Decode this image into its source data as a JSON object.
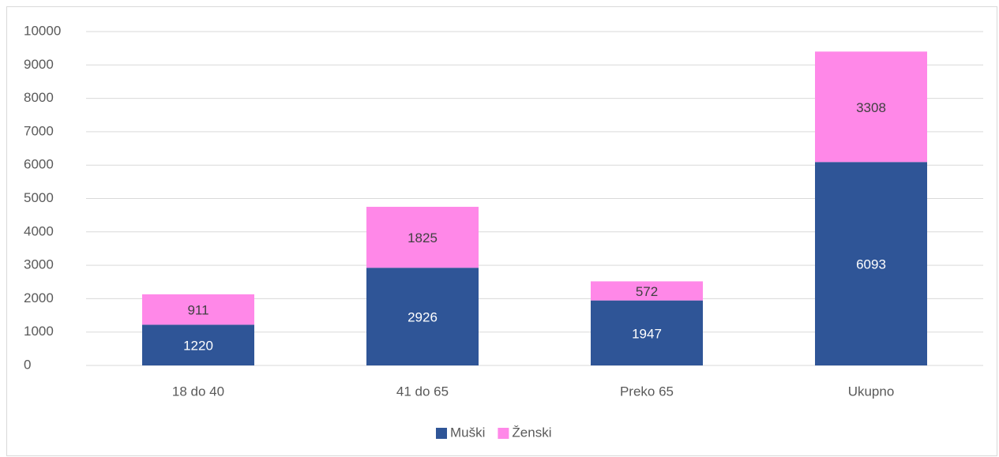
{
  "chart_data": {
    "type": "stacked_bar",
    "categories": [
      "18 do 40",
      "41 do 65",
      "Preko 65",
      "Ukupno"
    ],
    "series": [
      {
        "name": "Muški",
        "color": "#2f5597",
        "values": [
          1220,
          2926,
          1947,
          6093
        ]
      },
      {
        "name": "Ženski",
        "color": "#ff88e8",
        "values": [
          911,
          1825,
          572,
          3308
        ]
      }
    ],
    "ylim": [
      0,
      10000
    ],
    "yticks": [
      0,
      1000,
      2000,
      3000,
      4000,
      5000,
      6000,
      7000,
      8000,
      9000,
      10000
    ],
    "grid": true,
    "legend": "bottom"
  }
}
